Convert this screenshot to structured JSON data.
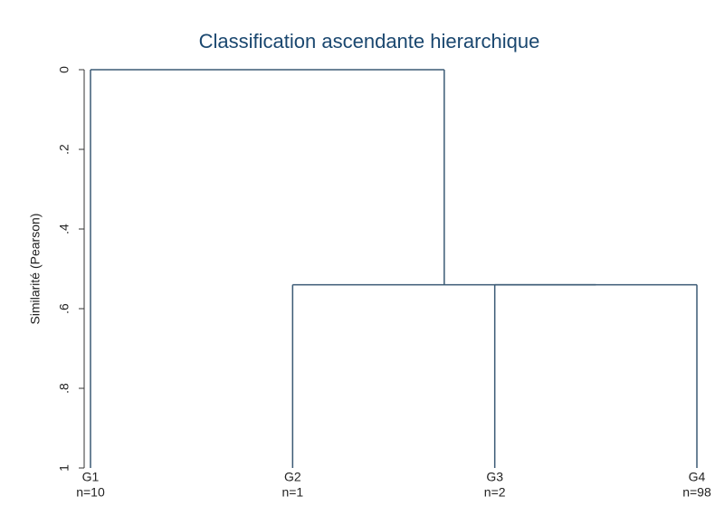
{
  "chart_data": {
    "type": "dendrogram",
    "title": "Classification ascendante hierarchique",
    "y_label": "Similarité (Pearson)",
    "categories": [
      "G1",
      "G2",
      "G3",
      "G4"
    ],
    "sublabels": [
      "n=10",
      "n=1",
      "n=2",
      "n=98"
    ],
    "merges": [
      {
        "left": 2,
        "right": 3,
        "height": 0.54
      },
      {
        "left": 1,
        "right": 4,
        "height": 0.54
      },
      {
        "left": 0,
        "right": 5,
        "height": 0
      }
    ],
    "color": "#3b5a75",
    "ylim": [
      0,
      1
    ],
    "yticks": [
      0,
      {
        "value": 0.2,
        "label": ".2"
      },
      {
        "value": 0.4,
        "label": ".4"
      },
      {
        "value": 0.6,
        "label": ".6"
      },
      {
        "value": 0.8,
        "label": ".8"
      },
      1
    ]
  }
}
